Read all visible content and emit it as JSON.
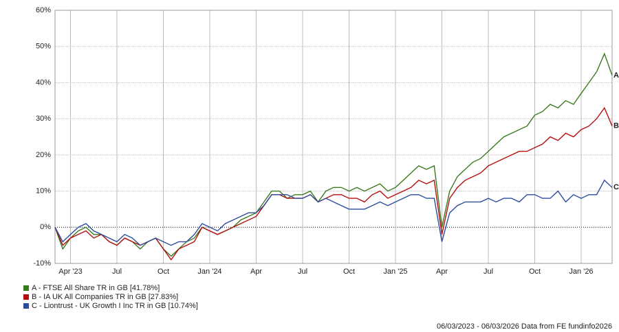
{
  "chart_data": {
    "type": "line",
    "categories": [
      null,
      null,
      "Apr '23",
      null,
      null,
      null,
      null,
      null,
      "Jul",
      null,
      null,
      null,
      null,
      null,
      "Oct",
      null,
      null,
      null,
      null,
      null,
      "Jan '24",
      null,
      null,
      null,
      null,
      null,
      "Apr",
      null,
      null,
      null,
      null,
      null,
      "Jul",
      null,
      null,
      null,
      null,
      null,
      "Oct",
      null,
      null,
      null,
      null,
      null,
      "Jan '25",
      null,
      null,
      null,
      null,
      null,
      "Apr",
      null,
      null,
      null,
      null,
      null,
      "Jul",
      null,
      null,
      null,
      null,
      null,
      "Oct",
      null,
      null,
      null,
      null,
      null,
      "Jan '26",
      null,
      null,
      null,
      null
    ],
    "series": [
      {
        "name": "A - FTSE All Share TR in GB [41.78%]",
        "end_label": "A",
        "color": "#3a7a1e",
        "values": [
          0,
          -6,
          -3,
          -1,
          0,
          -2,
          -2,
          -4,
          -5,
          -3,
          -4,
          -6,
          -4,
          -3,
          -6,
          -8,
          -6,
          -4,
          -3,
          0,
          -1,
          -2,
          -1,
          0,
          2,
          3,
          4,
          7,
          10,
          10,
          8,
          9,
          9,
          10,
          7,
          10,
          11,
          11,
          10,
          11,
          10,
          11,
          12,
          10,
          11,
          13,
          15,
          17,
          16,
          17,
          0,
          10,
          14,
          16,
          18,
          19,
          21,
          23,
          25,
          26,
          27,
          28,
          31,
          32,
          34,
          33,
          35,
          34,
          37,
          40,
          43,
          48,
          42
        ]
      },
      {
        "name": "B - IA UK All Companies TR in GB [27.83%]",
        "end_label": "B",
        "color": "#b50d0d",
        "values": [
          0,
          -5,
          -3,
          -2,
          -1,
          -3,
          -2,
          -4,
          -5,
          -3,
          -4,
          -5,
          -4,
          -3,
          -6,
          -9,
          -6,
          -5,
          -4,
          0,
          -1,
          -2,
          -1,
          0,
          1,
          2,
          3,
          6,
          9,
          9,
          8,
          8,
          8,
          9,
          7,
          8,
          9,
          9,
          8,
          8,
          7,
          9,
          10,
          8,
          9,
          10,
          11,
          13,
          12,
          13,
          -2,
          8,
          11,
          13,
          14,
          15,
          17,
          18,
          19,
          20,
          21,
          21,
          22,
          23,
          25,
          24,
          26,
          25,
          27,
          28,
          30,
          33,
          28
        ]
      },
      {
        "name": "C - Liontrust - UK Growth I Inc TR in GB [10.74%]",
        "end_label": "C",
        "color": "#2c4b9e",
        "values": [
          0,
          -4,
          -2,
          0,
          1,
          -1,
          -2,
          -3,
          -4,
          -2,
          -3,
          -5,
          -4,
          -3,
          -4,
          -5,
          -4,
          -4,
          -2,
          1,
          0,
          -1,
          1,
          2,
          3,
          4,
          4,
          6,
          9,
          9,
          9,
          8,
          8,
          9,
          7,
          8,
          7,
          6,
          5,
          5,
          5,
          6,
          7,
          6,
          7,
          8,
          9,
          9,
          8,
          8,
          -4,
          4,
          6,
          7,
          7,
          7,
          8,
          7,
          8,
          8,
          7,
          9,
          9,
          8,
          8,
          10,
          7,
          9,
          8,
          9,
          9,
          13,
          11
        ]
      }
    ],
    "ylim": [
      -10,
      60
    ],
    "yticks": [
      {
        "value": -10,
        "label": "-10%"
      },
      {
        "value": 0,
        "label": "0%"
      },
      {
        "value": 10,
        "label": "10%"
      },
      {
        "value": 20,
        "label": "20%"
      },
      {
        "value": 30,
        "label": "30%"
      },
      {
        "value": 40,
        "label": "40%"
      },
      {
        "value": 50,
        "label": "50%"
      },
      {
        "value": 60,
        "label": "60%"
      }
    ],
    "grid": true,
    "footer": "06/03/2023 - 06/03/2026 Data from FE fundinfo2026"
  }
}
